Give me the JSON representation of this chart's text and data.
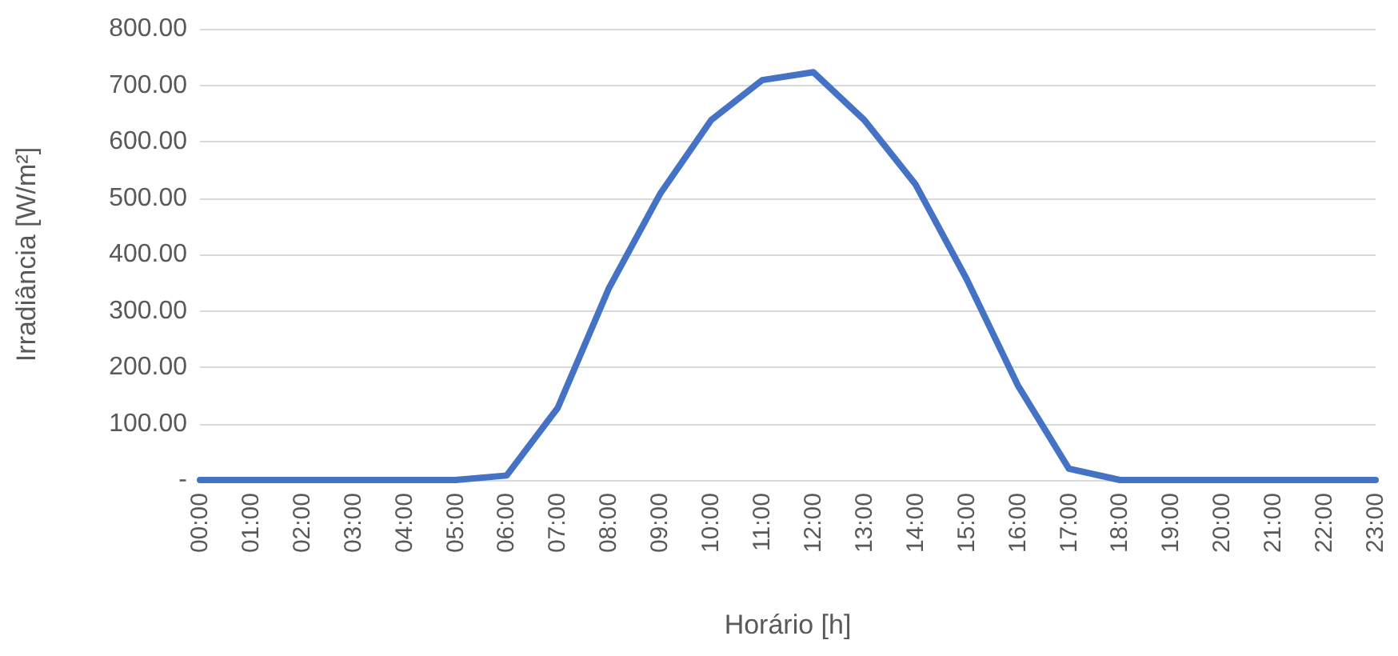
{
  "chart_data": {
    "type": "line",
    "xlabel": "Horário [h]",
    "ylabel": "Irradiância [W/m²]",
    "categories": [
      "00:00",
      "01:00",
      "02:00",
      "03:00",
      "04:00",
      "05:00",
      "06:00",
      "07:00",
      "08:00",
      "09:00",
      "10:00",
      "11:00",
      "12:00",
      "13:00",
      "14:00",
      "15:00",
      "16:00",
      "17:00",
      "18:00",
      "19:00",
      "20:00",
      "21:00",
      "22:00",
      "23:00"
    ],
    "series": [
      {
        "color": "#4472c4",
        "values": [
          0,
          0,
          0,
          0,
          0,
          0,
          8,
          128,
          340,
          507,
          638,
          709,
          723,
          638,
          524,
          356,
          168,
          20,
          0,
          0,
          0,
          0,
          0,
          0
        ]
      }
    ],
    "ylim": [
      0,
      800
    ],
    "yticks": [
      {
        "value": 0,
        "label": "-"
      },
      {
        "value": 100,
        "label": "100.00"
      },
      {
        "value": 200,
        "label": "200.00"
      },
      {
        "value": 300,
        "label": "300.00"
      },
      {
        "value": 400,
        "label": "400.00"
      },
      {
        "value": 500,
        "label": "500.00"
      },
      {
        "value": 600,
        "label": "600.00"
      },
      {
        "value": 700,
        "label": "700.00"
      },
      {
        "value": 800,
        "label": "800.00"
      }
    ],
    "grid": "y",
    "marker": "none",
    "line_style": "solid"
  }
}
